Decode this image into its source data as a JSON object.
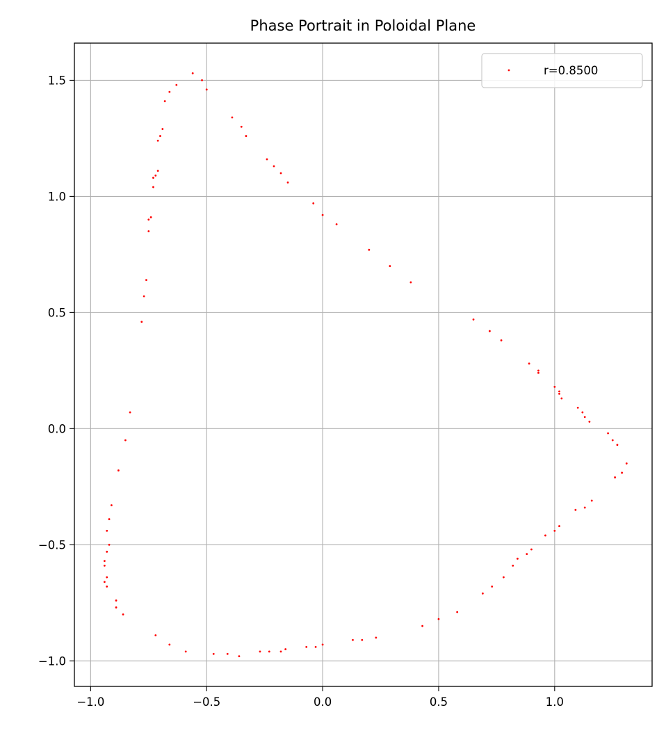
{
  "chart_data": {
    "type": "scatter",
    "title": "Phase Portrait in Poloidal Plane",
    "xlabel": "",
    "ylabel": "",
    "xlim": [
      -1.07,
      1.42
    ],
    "ylim": [
      -1.11,
      1.66
    ],
    "grid": true,
    "legend_position": "top-right",
    "x_ticks": [
      -1.0,
      -0.5,
      0.0,
      0.5,
      1.0
    ],
    "x_tick_labels": [
      "−1.0",
      "−0.5",
      "0.0",
      "0.5",
      "1.0"
    ],
    "y_ticks": [
      -1.0,
      -0.5,
      0.0,
      0.5,
      1.0,
      1.5
    ],
    "y_tick_labels": [
      "−1.0",
      "−0.5",
      "0.0",
      "0.5",
      "1.0",
      "1.5"
    ],
    "series": [
      {
        "name": "r=0.8500",
        "color": "#ff0000",
        "points": [
          [
            -0.56,
            1.53
          ],
          [
            -0.52,
            1.5
          ],
          [
            -0.5,
            1.46
          ],
          [
            -0.63,
            1.48
          ],
          [
            -0.66,
            1.45
          ],
          [
            -0.68,
            1.41
          ],
          [
            -0.69,
            1.29
          ],
          [
            -0.7,
            1.26
          ],
          [
            -0.71,
            1.24
          ],
          [
            -0.71,
            1.11
          ],
          [
            -0.72,
            1.09
          ],
          [
            -0.73,
            1.08
          ],
          [
            -0.73,
            1.04
          ],
          [
            -0.74,
            0.91
          ],
          [
            -0.75,
            0.9
          ],
          [
            -0.75,
            0.85
          ],
          [
            -0.76,
            0.64
          ],
          [
            -0.77,
            0.57
          ],
          [
            -0.78,
            0.46
          ],
          [
            -0.83,
            0.07
          ],
          [
            -0.85,
            -0.05
          ],
          [
            -0.88,
            -0.18
          ],
          [
            -0.91,
            -0.33
          ],
          [
            -0.92,
            -0.39
          ],
          [
            -0.93,
            -0.44
          ],
          [
            -0.92,
            -0.5
          ],
          [
            -0.93,
            -0.53
          ],
          [
            -0.94,
            -0.57
          ],
          [
            -0.94,
            -0.59
          ],
          [
            -0.93,
            -0.64
          ],
          [
            -0.94,
            -0.66
          ],
          [
            -0.93,
            -0.68
          ],
          [
            -0.89,
            -0.74
          ],
          [
            -0.89,
            -0.77
          ],
          [
            -0.86,
            -0.8
          ],
          [
            -0.72,
            -0.89
          ],
          [
            -0.66,
            -0.93
          ],
          [
            -0.59,
            -0.96
          ],
          [
            -0.47,
            -0.97
          ],
          [
            -0.41,
            -0.97
          ],
          [
            -0.36,
            -0.98
          ],
          [
            -0.27,
            -0.96
          ],
          [
            -0.23,
            -0.96
          ],
          [
            -0.18,
            -0.96
          ],
          [
            -0.16,
            -0.95
          ],
          [
            -0.07,
            -0.94
          ],
          [
            -0.03,
            -0.94
          ],
          [
            0.0,
            -0.93
          ],
          [
            0.13,
            -0.91
          ],
          [
            0.17,
            -0.91
          ],
          [
            0.23,
            -0.9
          ],
          [
            0.43,
            -0.85
          ],
          [
            0.5,
            -0.82
          ],
          [
            0.58,
            -0.79
          ],
          [
            0.69,
            -0.71
          ],
          [
            0.73,
            -0.68
          ],
          [
            0.78,
            -0.64
          ],
          [
            0.82,
            -0.59
          ],
          [
            0.84,
            -0.56
          ],
          [
            0.88,
            -0.54
          ],
          [
            0.9,
            -0.52
          ],
          [
            0.96,
            -0.46
          ],
          [
            1.0,
            -0.44
          ],
          [
            1.02,
            -0.42
          ],
          [
            1.09,
            -0.35
          ],
          [
            1.13,
            -0.34
          ],
          [
            1.16,
            -0.31
          ],
          [
            1.26,
            -0.21
          ],
          [
            1.29,
            -0.19
          ],
          [
            1.31,
            -0.15
          ],
          [
            1.27,
            -0.07
          ],
          [
            1.25,
            -0.05
          ],
          [
            1.23,
            -0.02
          ],
          [
            1.15,
            0.03
          ],
          [
            1.13,
            0.05
          ],
          [
            1.12,
            0.07
          ],
          [
            1.1,
            0.09
          ],
          [
            1.03,
            0.13
          ],
          [
            1.02,
            0.15
          ],
          [
            1.02,
            0.16
          ],
          [
            1.0,
            0.18
          ],
          [
            0.93,
            0.24
          ],
          [
            0.93,
            0.25
          ],
          [
            0.89,
            0.28
          ],
          [
            0.77,
            0.38
          ],
          [
            0.72,
            0.42
          ],
          [
            0.65,
            0.47
          ],
          [
            0.38,
            0.63
          ],
          [
            0.29,
            0.7
          ],
          [
            0.2,
            0.77
          ],
          [
            0.06,
            0.88
          ],
          [
            0.0,
            0.92
          ],
          [
            -0.04,
            0.97
          ],
          [
            -0.15,
            1.06
          ],
          [
            -0.18,
            1.1
          ],
          [
            -0.21,
            1.13
          ],
          [
            -0.24,
            1.16
          ],
          [
            -0.33,
            1.26
          ],
          [
            -0.35,
            1.3
          ],
          [
            -0.39,
            1.34
          ]
        ]
      }
    ]
  }
}
